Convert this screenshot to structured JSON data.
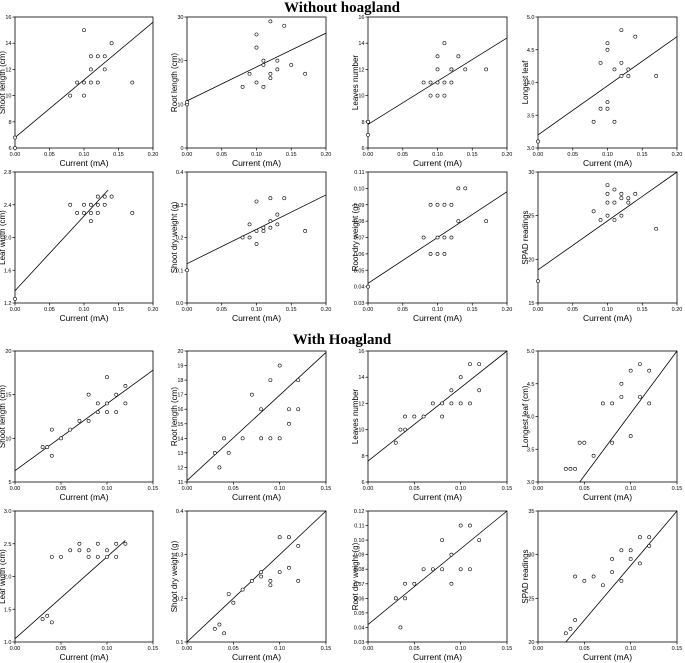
{
  "titles": {
    "top": "Without hoagland",
    "bottom": "With Hoagland"
  },
  "chart_data": [
    {
      "type": "scatter",
      "section": "Without hoagland",
      "xlabel": "Current (mA)",
      "ylabel": "Shoot length (cm)",
      "xlim": [
        0,
        0.2
      ],
      "ylim": [
        6,
        16
      ],
      "xticks": [
        "0.00",
        "0.05",
        "0.10",
        "0.15",
        "0.20"
      ],
      "yticks": [
        "6",
        "8",
        "10",
        "12",
        "14",
        "16"
      ],
      "x": [
        0,
        0,
        0.08,
        0.09,
        0.1,
        0.1,
        0.1,
        0.11,
        0.11,
        0.11,
        0.12,
        0.12,
        0.13,
        0.13,
        0.14,
        0.17
      ],
      "y": [
        6,
        6.8,
        10,
        11,
        15,
        10,
        11,
        13,
        11,
        12,
        13,
        11,
        13,
        12,
        14,
        11
      ],
      "trendline": {
        "x": [
          0,
          0.2
        ],
        "y": [
          6.8,
          15.6
        ]
      }
    },
    {
      "type": "scatter",
      "section": "Without hoagland",
      "xlabel": "Current (mA)",
      "ylabel": "Root length (cm)",
      "xlim": [
        0,
        0.2
      ],
      "ylim": [
        0,
        30
      ],
      "xticks": [
        "0.00",
        "0.05",
        "0.10",
        "0.15",
        "0.20"
      ],
      "yticks": [
        "0",
        "10",
        "20",
        "30"
      ],
      "x": [
        0,
        0,
        0.08,
        0.09,
        0.1,
        0.1,
        0.1,
        0.11,
        0.11,
        0.11,
        0.12,
        0.12,
        0.12,
        0.13,
        0.13,
        0.14,
        0.15,
        0.17
      ],
      "y": [
        10,
        10.5,
        14,
        17,
        26,
        23,
        15,
        19,
        20,
        14,
        16,
        17,
        29,
        18,
        20,
        28,
        19,
        17
      ],
      "trendline": {
        "x": [
          0,
          0.2
        ],
        "y": [
          10.8,
          26.3
        ]
      }
    },
    {
      "type": "scatter",
      "section": "Without hoagland",
      "xlabel": "Current (mA)",
      "ylabel": "Leaves number",
      "xlim": [
        0,
        0.2
      ],
      "ylim": [
        6,
        16
      ],
      "xticks": [
        "0.00",
        "0.05",
        "0.10",
        "0.15",
        "0.20"
      ],
      "yticks": [
        "6",
        "8",
        "10",
        "12",
        "14",
        "16"
      ],
      "x": [
        0,
        0,
        0,
        0.08,
        0.09,
        0.09,
        0.1,
        0.1,
        0.1,
        0.1,
        0.11,
        0.11,
        0.11,
        0.12,
        0.12,
        0.12,
        0.13,
        0.14,
        0.17
      ],
      "y": [
        7,
        8,
        8,
        11,
        10,
        11,
        10,
        12,
        13,
        11,
        10,
        11,
        14,
        11,
        12,
        12,
        13,
        12,
        12
      ],
      "trendline": {
        "x": [
          0,
          0.2
        ],
        "y": [
          7.8,
          14.4
        ]
      }
    },
    {
      "type": "scatter",
      "section": "Without hoagland",
      "xlabel": "Current (mA)",
      "ylabel": "Longest leaf",
      "xlim": [
        0,
        0.2
      ],
      "ylim": [
        3,
        5
      ],
      "xticks": [
        "0.00",
        "0.05",
        "0.10",
        "0.15",
        "0.20"
      ],
      "yticks": [
        "3.0",
        "3.5",
        "4.0",
        "4.5",
        "5.0"
      ],
      "x": [
        0,
        0.08,
        0.09,
        0.09,
        0.1,
        0.1,
        0.1,
        0.1,
        0.11,
        0.11,
        0.12,
        0.12,
        0.12,
        0.13,
        0.13,
        0.14,
        0.17
      ],
      "y": [
        3.1,
        3.4,
        3.6,
        4.3,
        3.6,
        3.7,
        4.5,
        4.6,
        3.4,
        4.2,
        4.8,
        4.1,
        4.3,
        4.2,
        4.1,
        4.7,
        4.1
      ],
      "trendline": {
        "x": [
          0,
          0.2
        ],
        "y": [
          3.2,
          4.7
        ]
      }
    },
    {
      "type": "scatter",
      "section": "Without hoagland",
      "xlabel": "Current (mA)",
      "ylabel": "Leaf width (cm)",
      "xlim": [
        0,
        0.2
      ],
      "ylim": [
        1.2,
        2.8
      ],
      "xticks": [
        "0.00",
        "0.05",
        "0.10",
        "0.15",
        "0.20"
      ],
      "yticks": [
        "1.2",
        "1.6",
        "2.0",
        "2.4",
        "2.8"
      ],
      "x": [
        0,
        0.08,
        0.09,
        0.1,
        0.1,
        0.11,
        0.11,
        0.11,
        0.12,
        0.12,
        0.12,
        0.13,
        0.13,
        0.14,
        0.17
      ],
      "y": [
        1.25,
        2.4,
        2.3,
        2.3,
        2.4,
        2.2,
        2.4,
        2.3,
        2.4,
        2.5,
        2.3,
        2.4,
        2.5,
        2.5,
        2.3
      ],
      "trendline": {
        "x": [
          0,
          0.135
        ],
        "y": [
          1.35,
          2.58
        ]
      }
    },
    {
      "type": "scatter",
      "section": "Without hoagland",
      "xlabel": "Current (mA)",
      "ylabel": "Shoot dry weight (g)",
      "xlim": [
        0,
        0.2
      ],
      "ylim": [
        0,
        0.4
      ],
      "xticks": [
        "0.00",
        "0.05",
        "0.10",
        "0.15",
        "0.20"
      ],
      "yticks": [
        "0.0",
        "0.1",
        "0.2",
        "0.3",
        "0.4"
      ],
      "x": [
        0,
        0.08,
        0.09,
        0.09,
        0.1,
        0.1,
        0.1,
        0.11,
        0.11,
        0.12,
        0.12,
        0.12,
        0.13,
        0.13,
        0.14,
        0.17
      ],
      "y": [
        0.1,
        0.2,
        0.24,
        0.2,
        0.18,
        0.22,
        0.31,
        0.23,
        0.22,
        0.25,
        0.23,
        0.32,
        0.24,
        0.27,
        0.32,
        0.22
      ],
      "trendline": {
        "x": [
          0,
          0.2
        ],
        "y": [
          0.12,
          0.33
        ]
      }
    },
    {
      "type": "scatter",
      "section": "Without hoagland",
      "xlabel": "Current (mA)",
      "ylabel": "Root dry weight (g)",
      "xlim": [
        0,
        0.2
      ],
      "ylim": [
        0.03,
        0.11
      ],
      "xticks": [
        "0.00",
        "0.05",
        "0.10",
        "0.15",
        "0.20"
      ],
      "yticks": [
        "0.03",
        "0.04",
        "0.05",
        "0.06",
        "0.07",
        "0.08",
        "0.09",
        "0.10",
        "0.11"
      ],
      "x": [
        0,
        0.08,
        0.09,
        0.09,
        0.1,
        0.1,
        0.1,
        0.11,
        0.11,
        0.11,
        0.12,
        0.12,
        0.13,
        0.13,
        0.14,
        0.17
      ],
      "y": [
        0.04,
        0.07,
        0.06,
        0.09,
        0.07,
        0.06,
        0.09,
        0.07,
        0.06,
        0.09,
        0.07,
        0.09,
        0.08,
        0.1,
        0.1,
        0.08
      ],
      "trendline": {
        "x": [
          0,
          0.2
        ],
        "y": [
          0.042,
          0.098
        ]
      }
    },
    {
      "type": "scatter",
      "section": "Without hoagland",
      "xlabel": "Current (mA)",
      "ylabel": "SPAD readings",
      "xlim": [
        0,
        0.2
      ],
      "ylim": [
        15,
        30
      ],
      "xticks": [
        "0.00",
        "0.05",
        "0.10",
        "0.15",
        "0.20"
      ],
      "yticks": [
        "15",
        "20",
        "25",
        "30"
      ],
      "x": [
        0,
        0.08,
        0.09,
        0.1,
        0.1,
        0.1,
        0.1,
        0.11,
        0.11,
        0.11,
        0.12,
        0.12,
        0.12,
        0.13,
        0.13,
        0.14,
        0.17
      ],
      "y": [
        17.5,
        25.5,
        24.5,
        28.5,
        27.5,
        25,
        26.5,
        28,
        26.5,
        24.5,
        27.5,
        25,
        27,
        26.5,
        27,
        27.5,
        23.5
      ],
      "trendline": {
        "x": [
          0,
          0.2
        ],
        "y": [
          18.8,
          30
        ]
      }
    },
    {
      "type": "scatter",
      "section": "With Hoagland",
      "xlabel": "Current (mA)",
      "ylabel": "Shoot length (cm)",
      "xlim": [
        0,
        0.15
      ],
      "ylim": [
        5,
        20
      ],
      "xticks": [
        "0.00",
        "0.05",
        "0.10",
        "0.15"
      ],
      "yticks": [
        "5",
        "10",
        "15",
        "20"
      ],
      "x": [
        0.03,
        0.035,
        0.04,
        0.04,
        0.05,
        0.06,
        0.07,
        0.08,
        0.08,
        0.09,
        0.09,
        0.1,
        0.1,
        0.1,
        0.11,
        0.11,
        0.12,
        0.12
      ],
      "y": [
        9,
        9,
        8,
        11,
        10,
        11,
        12,
        12,
        15,
        13,
        14,
        13,
        17,
        14,
        13,
        15,
        14,
        16
      ],
      "trendline": {
        "x": [
          0,
          0.15
        ],
        "y": [
          6.3,
          17.8
        ]
      }
    },
    {
      "type": "scatter",
      "section": "With Hoagland",
      "xlabel": "Current (mA)",
      "ylabel": "Root length (cm)",
      "xlim": [
        0,
        0.15
      ],
      "ylim": [
        11,
        20
      ],
      "xticks": [
        "0.00",
        "0.05",
        "0.10",
        "0.15"
      ],
      "yticks": [
        "11",
        "12",
        "13",
        "14",
        "15",
        "16",
        "17",
        "18",
        "19",
        "20"
      ],
      "x": [
        0.03,
        0.035,
        0.04,
        0.045,
        0.06,
        0.07,
        0.08,
        0.08,
        0.09,
        0.09,
        0.1,
        0.1,
        0.11,
        0.11,
        0.12,
        0.12
      ],
      "y": [
        13,
        12,
        14,
        13,
        14,
        17,
        14,
        16,
        14,
        18,
        14,
        19,
        16,
        15,
        16,
        18
      ],
      "trendline": {
        "x": [
          0,
          0.15
        ],
        "y": [
          11.1,
          19.9
        ]
      }
    },
    {
      "type": "scatter",
      "section": "With Hoagland",
      "xlabel": "Current (mA)",
      "ylabel": "Leaves number",
      "xlim": [
        0,
        0.15
      ],
      "ylim": [
        6,
        16
      ],
      "xticks": [
        "0.00",
        "0.05",
        "0.10",
        "0.15"
      ],
      "yticks": [
        "6",
        "8",
        "10",
        "12",
        "14",
        "16"
      ],
      "x": [
        0.03,
        0.035,
        0.04,
        0.04,
        0.05,
        0.06,
        0.07,
        0.08,
        0.08,
        0.09,
        0.09,
        0.1,
        0.1,
        0.11,
        0.11,
        0.12,
        0.12
      ],
      "y": [
        9,
        10,
        10,
        11,
        11,
        11,
        12,
        11,
        12,
        12,
        13,
        12,
        14,
        12,
        15,
        13,
        15
      ],
      "trendline": {
        "x": [
          0,
          0.15
        ],
        "y": [
          7.6,
          16
        ]
      }
    },
    {
      "type": "scatter",
      "section": "With Hoagland",
      "xlabel": "Current (mA)",
      "ylabel": "Longest leaf (cm)",
      "xlim": [
        0,
        0.15
      ],
      "ylim": [
        3,
        5
      ],
      "xticks": [
        "0.00",
        "0.05",
        "0.10",
        "0.15"
      ],
      "yticks": [
        "3.0",
        "3.5",
        "4.0",
        "4.5",
        "5.0"
      ],
      "x": [
        0.03,
        0.035,
        0.04,
        0.045,
        0.05,
        0.06,
        0.07,
        0.08,
        0.08,
        0.09,
        0.09,
        0.1,
        0.1,
        0.11,
        0.11,
        0.12,
        0.12
      ],
      "y": [
        3.2,
        3.2,
        3.2,
        3.6,
        3.6,
        3.4,
        4.2,
        3.6,
        4.2,
        4.3,
        4.5,
        4.7,
        3.7,
        4.3,
        4.8,
        4.2,
        4.7
      ],
      "trendline": {
        "x": [
          0.045,
          0.15
        ],
        "y": [
          3,
          5
        ]
      }
    },
    {
      "type": "scatter",
      "section": "With Hoagland",
      "xlabel": "Current (mA)",
      "ylabel": "Leaf width (cm)",
      "xlim": [
        0,
        0.15
      ],
      "ylim": [
        1,
        3
      ],
      "xticks": [
        "0.00",
        "0.05",
        "0.10",
        "0.15"
      ],
      "yticks": [
        "1.0",
        "1.5",
        "2.0",
        "2.5",
        "3.0"
      ],
      "x": [
        0.03,
        0.035,
        0.04,
        0.04,
        0.05,
        0.06,
        0.07,
        0.07,
        0.08,
        0.08,
        0.09,
        0.09,
        0.1,
        0.1,
        0.11,
        0.11,
        0.12
      ],
      "y": [
        1.35,
        1.4,
        1.3,
        2.3,
        2.3,
        2.4,
        2.4,
        2.5,
        2.3,
        2.4,
        2.3,
        2.5,
        2.4,
        2.3,
        2.5,
        2.3,
        2.5
      ],
      "trendline": {
        "x": [
          0,
          0.12
        ],
        "y": [
          1.05,
          2.55
        ]
      }
    },
    {
      "type": "scatter",
      "section": "With Hoagland",
      "xlabel": "Current (mA)",
      "ylabel": "Shoot dry weight (g)",
      "xlim": [
        0,
        0.15
      ],
      "ylim": [
        0.1,
        0.4
      ],
      "xticks": [
        "0.00",
        "0.05",
        "0.10",
        "0.15"
      ],
      "yticks": [
        "0.1",
        "0.2",
        "0.3",
        "0.4"
      ],
      "x": [
        0.03,
        0.035,
        0.04,
        0.045,
        0.05,
        0.06,
        0.07,
        0.08,
        0.08,
        0.09,
        0.09,
        0.1,
        0.1,
        0.11,
        0.11,
        0.12,
        0.12
      ],
      "y": [
        0.13,
        0.14,
        0.12,
        0.21,
        0.19,
        0.22,
        0.24,
        0.26,
        0.25,
        0.23,
        0.24,
        0.26,
        0.34,
        0.27,
        0.34,
        0.24,
        0.32
      ],
      "trendline": {
        "x": [
          0,
          0.15
        ],
        "y": [
          0.1,
          0.4
        ]
      }
    },
    {
      "type": "scatter",
      "section": "With Hoagland",
      "xlabel": "Current (mA)",
      "ylabel": "Root dry weight (g)",
      "xlim": [
        0,
        0.15
      ],
      "ylim": [
        0.03,
        0.12
      ],
      "xticks": [
        "0.00",
        "0.05",
        "0.10",
        "0.15"
      ],
      "yticks": [
        "0.03",
        "0.04",
        "0.05",
        "0.06",
        "0.07",
        "0.08",
        "0.09",
        "0.10",
        "0.11",
        "0.12"
      ],
      "x": [
        0.03,
        0.035,
        0.04,
        0.04,
        0.05,
        0.06,
        0.07,
        0.08,
        0.08,
        0.09,
        0.09,
        0.1,
        0.1,
        0.11,
        0.11,
        0.12
      ],
      "y": [
        0.06,
        0.04,
        0.06,
        0.07,
        0.07,
        0.08,
        0.08,
        0.08,
        0.1,
        0.07,
        0.09,
        0.08,
        0.11,
        0.08,
        0.11,
        0.1
      ],
      "trendline": {
        "x": [
          0,
          0.15
        ],
        "y": [
          0.042,
          0.12
        ]
      }
    },
    {
      "type": "scatter",
      "section": "With Hoagland",
      "xlabel": "Current (mA)",
      "ylabel": "SPAD readings",
      "xlim": [
        0,
        0.15
      ],
      "ylim": [
        20,
        35
      ],
      "xticks": [
        "0.00",
        "0.05",
        "0.10",
        "0.15"
      ],
      "yticks": [
        "20",
        "25",
        "30",
        "35"
      ],
      "x": [
        0.03,
        0.035,
        0.04,
        0.04,
        0.05,
        0.06,
        0.07,
        0.08,
        0.08,
        0.09,
        0.09,
        0.1,
        0.1,
        0.11,
        0.11,
        0.12,
        0.12
      ],
      "y": [
        21,
        21.5,
        22.5,
        27.5,
        27,
        27.5,
        26.5,
        28,
        29.5,
        27,
        30.5,
        29.5,
        30.5,
        29,
        32,
        31,
        32
      ],
      "trendline": {
        "x": [
          0.03,
          0.15
        ],
        "y": [
          20,
          35
        ]
      }
    }
  ]
}
